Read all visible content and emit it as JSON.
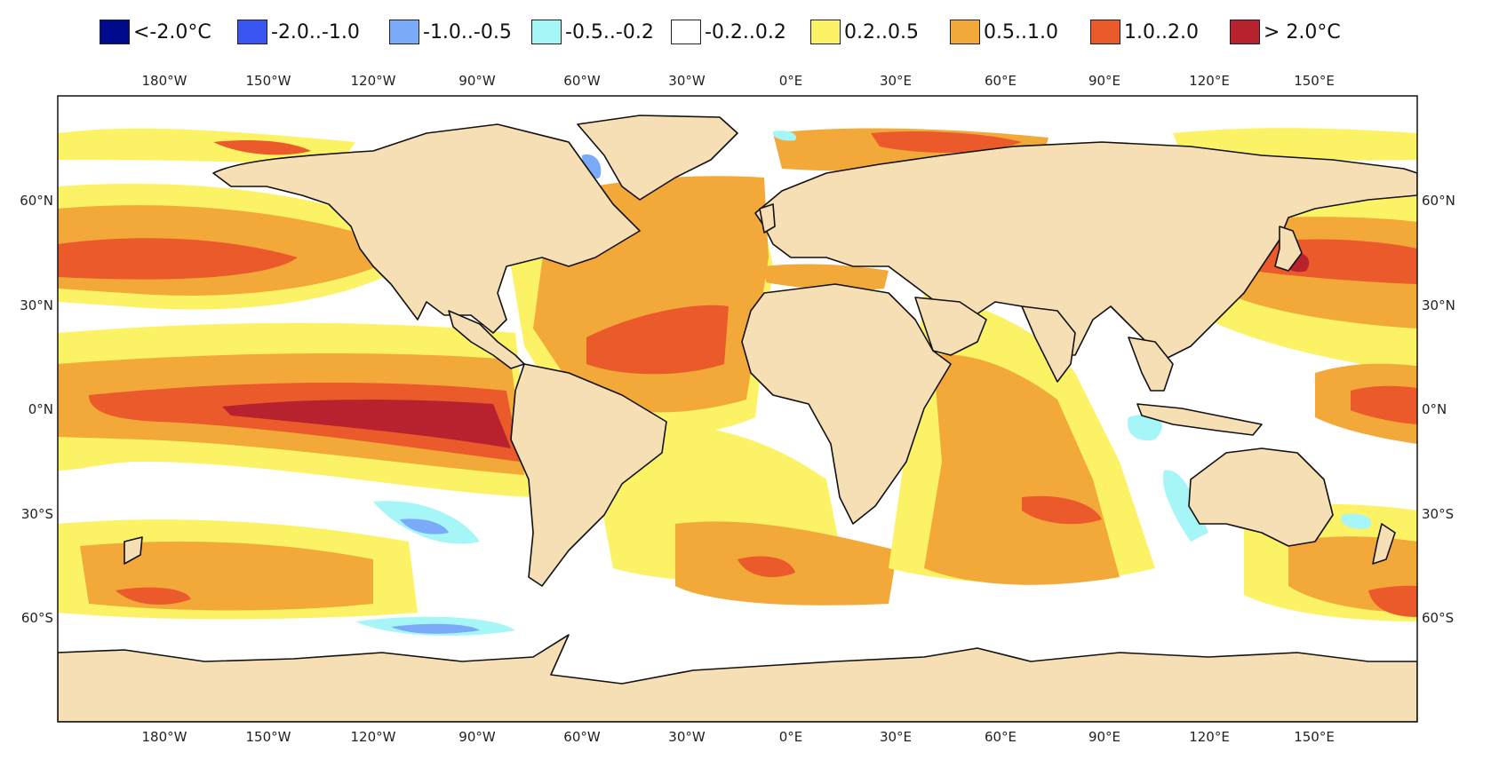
{
  "legend": [
    {
      "label": "<-2.0°C",
      "color": "#000a8c",
      "range": [
        null,
        -2.0
      ]
    },
    {
      "label": "-2.0..-1.0",
      "color": "#3a55f0",
      "range": [
        -2.0,
        -1.0
      ]
    },
    {
      "label": "-1.0..-0.5",
      "color": "#7aaaf8",
      "range": [
        -1.0,
        -0.5
      ]
    },
    {
      "label": "-0.5..-0.2",
      "color": "#a6f6f8",
      "range": [
        -0.5,
        -0.2
      ]
    },
    {
      "label": "-0.2..0.2",
      "color": "#ffffff",
      "range": [
        -0.2,
        0.2
      ]
    },
    {
      "label": "0.2..0.5",
      "color": "#fbf365",
      "range": [
        0.2,
        0.5
      ]
    },
    {
      "label": "0.5..1.0",
      "color": "#f3a83a",
      "range": [
        0.5,
        1.0
      ]
    },
    {
      "label": "1.0..2.0",
      "color": "#ea5a2a",
      "range": [
        1.0,
        2.0
      ]
    },
    {
      "label": "> 2.0°C",
      "color": "#b8212e",
      "range": [
        2.0,
        null
      ]
    }
  ],
  "colors": {
    "land": "#f6dfb4",
    "coastline": "#111111",
    "borders": "#9a9a9a",
    "frame": "#111111"
  },
  "axes": {
    "lon_ticks": [
      "180°W",
      "150°W",
      "120°W",
      "90°W",
      "60°W",
      "30°W",
      "0°E",
      "30°E",
      "60°E",
      "90°E",
      "120°E",
      "150°E"
    ],
    "lat_ticks_left": [
      "60°N",
      "30°N",
      "0°N",
      "30°S",
      "60°S"
    ],
    "lat_ticks_right": [
      "60°N",
      "30°N",
      "0°N",
      "30°S",
      "60°S"
    ]
  }
}
